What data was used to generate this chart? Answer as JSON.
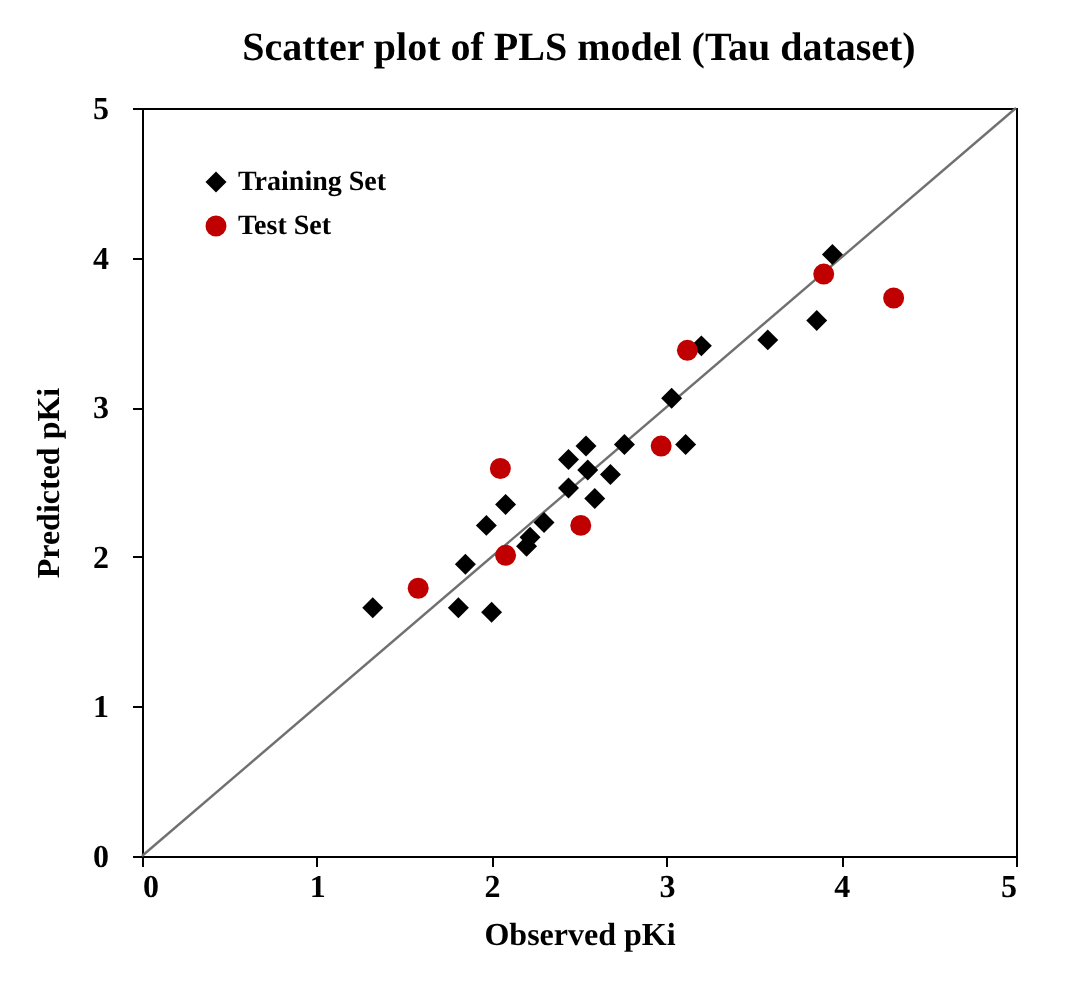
{
  "chart_data": {
    "type": "scatter",
    "title": "Scatter plot of PLS model (Tau dataset)",
    "xlabel": "Observed pKi",
    "ylabel": "Predicted pKi",
    "xlim": [
      0,
      5
    ],
    "ylim": [
      0,
      5
    ],
    "xticks": [
      0,
      1,
      2,
      3,
      4,
      5
    ],
    "yticks": [
      0,
      1,
      2,
      3,
      4,
      5
    ],
    "grid": false,
    "legend": "top left",
    "series": [
      {
        "name": "Training Set",
        "color": "#000000",
        "marker": "diamond",
        "x": [
          1.32,
          1.81,
          2.0,
          1.85,
          1.97,
          2.08,
          2.2,
          2.22,
          2.3,
          2.44,
          2.44,
          2.54,
          2.55,
          2.59,
          2.68,
          2.76,
          3.11,
          3.03,
          3.2,
          3.58,
          3.86,
          3.95
        ],
        "values": [
          1.66,
          1.66,
          1.63,
          1.95,
          2.21,
          2.35,
          2.07,
          2.13,
          2.23,
          2.46,
          2.65,
          2.74,
          2.58,
          2.39,
          2.55,
          2.75,
          2.75,
          3.06,
          3.41,
          3.45,
          3.58,
          4.02
        ]
      },
      {
        "name": "Test Set",
        "color": "#c00000",
        "marker": "circle",
        "x": [
          1.58,
          2.05,
          2.08,
          2.51,
          2.97,
          3.12,
          3.9,
          4.3
        ],
        "values": [
          1.79,
          2.59,
          2.01,
          2.21,
          2.74,
          3.38,
          3.89,
          3.73
        ]
      },
      {
        "type": "line",
        "color": "#707070",
        "x": [
          0,
          5
        ],
        "values": [
          0,
          5
        ]
      }
    ]
  }
}
